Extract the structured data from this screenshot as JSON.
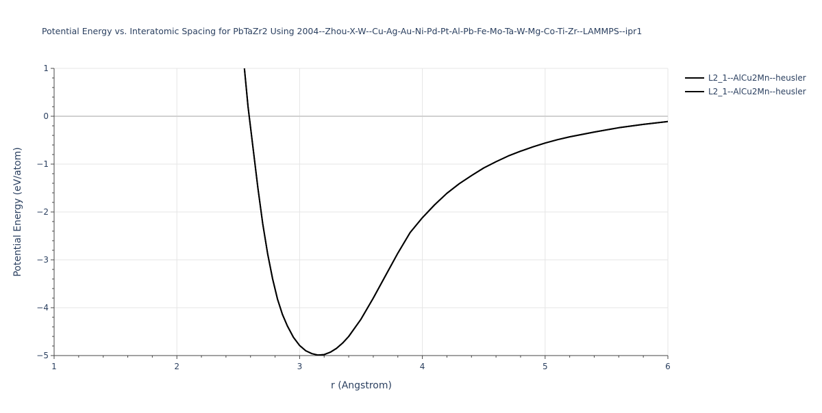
{
  "chart_data": {
    "type": "line",
    "title": "Potential Energy vs. Interatomic Spacing for PbTaZr2 Using 2004--Zhou-X-W--Cu-Ag-Au-Ni-Pd-Pt-Al-Pb-Fe-Mo-Ta-W-Mg-Co-Ti-Zr--LAMMPS--ipr1",
    "xlabel": "r (Angstrom)",
    "ylabel": "Potential Energy (eV/atom)",
    "xlim": [
      1,
      6
    ],
    "ylim": [
      -5,
      1
    ],
    "xticks": [
      1,
      2,
      3,
      4,
      5,
      6
    ],
    "xtick_labels": [
      "1",
      "2",
      "3",
      "4",
      "5",
      "6"
    ],
    "yticks": [
      1,
      0,
      -1,
      -2,
      -3,
      -4,
      -5
    ],
    "ytick_labels": [
      "1",
      "0",
      "−1",
      "−2",
      "−3",
      "−4",
      "−5"
    ],
    "grid": true,
    "legend_position": "top-right",
    "colors": {
      "series": "#000000",
      "grid": "#e5e5e5",
      "zeroline": "#d0d0d0",
      "axis_text": "#2a3f5f",
      "axis_line": "#444444"
    },
    "series": [
      {
        "name": "L2_1--AlCu2Mn--heusler",
        "color": "#000000",
        "x": [
          2.55,
          2.58,
          2.62,
          2.66,
          2.7,
          2.74,
          2.78,
          2.82,
          2.86,
          2.9,
          2.95,
          3.0,
          3.05,
          3.1,
          3.15,
          3.2,
          3.25,
          3.3,
          3.35,
          3.4,
          3.5,
          3.6,
          3.7,
          3.8,
          3.9,
          4.0,
          4.1,
          4.2,
          4.3,
          4.4,
          4.5,
          4.6,
          4.7,
          4.8,
          4.9,
          5.0,
          5.1,
          5.2,
          5.4,
          5.6,
          5.8,
          6.0
        ],
        "y": [
          1.0,
          0.2,
          -0.65,
          -1.5,
          -2.25,
          -2.88,
          -3.4,
          -3.82,
          -4.14,
          -4.38,
          -4.62,
          -4.79,
          -4.9,
          -4.96,
          -4.99,
          -4.98,
          -4.93,
          -4.85,
          -4.74,
          -4.6,
          -4.24,
          -3.8,
          -3.33,
          -2.86,
          -2.43,
          -2.12,
          -1.85,
          -1.61,
          -1.41,
          -1.24,
          -1.08,
          -0.95,
          -0.83,
          -0.73,
          -0.64,
          -0.56,
          -0.49,
          -0.43,
          -0.33,
          -0.24,
          -0.17,
          -0.11
        ]
      },
      {
        "name": "L2_1--AlCu2Mn--heusler",
        "color": "#000000",
        "x": [
          2.55,
          2.58,
          2.62,
          2.66,
          2.7,
          2.74,
          2.78,
          2.82,
          2.86,
          2.9,
          2.95,
          3.0,
          3.05,
          3.1,
          3.15,
          3.2,
          3.25,
          3.3,
          3.35,
          3.4,
          3.5,
          3.6,
          3.7,
          3.8,
          3.9,
          4.0,
          4.1,
          4.2,
          4.3,
          4.4,
          4.5,
          4.6,
          4.7,
          4.8,
          4.9,
          5.0,
          5.1,
          5.2,
          5.4,
          5.6,
          5.8,
          6.0
        ],
        "y": [
          1.0,
          0.2,
          -0.65,
          -1.5,
          -2.25,
          -2.88,
          -3.4,
          -3.82,
          -4.14,
          -4.38,
          -4.62,
          -4.79,
          -4.9,
          -4.96,
          -4.99,
          -4.98,
          -4.93,
          -4.85,
          -4.74,
          -4.6,
          -4.24,
          -3.8,
          -3.33,
          -2.86,
          -2.43,
          -2.12,
          -1.85,
          -1.61,
          -1.41,
          -1.24,
          -1.08,
          -0.95,
          -0.83,
          -0.73,
          -0.64,
          -0.56,
          -0.49,
          -0.43,
          -0.33,
          -0.24,
          -0.17,
          -0.11
        ]
      }
    ]
  }
}
